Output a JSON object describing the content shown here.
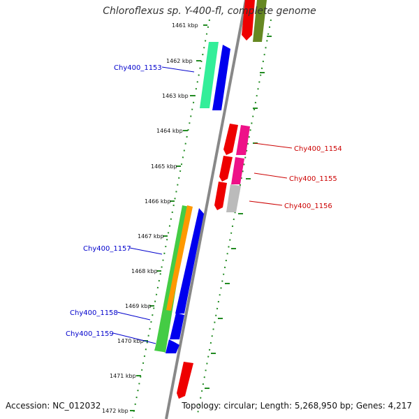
{
  "title": "Chloroflexus sp. Y-400-fl, complete genome",
  "footer": {
    "accession": "Accession: NC_012032",
    "summary": "Topology: circular; Length: 5,268,950 bp; Genes: 4,217"
  },
  "scale": {
    "ticks": [
      {
        "label": "1461 kbp"
      },
      {
        "label": "1462 kbp"
      },
      {
        "label": "1463 kbp"
      },
      {
        "label": "1464 kbp"
      },
      {
        "label": "1465 kbp"
      },
      {
        "label": "1466 kbp"
      },
      {
        "label": "1467 kbp"
      },
      {
        "label": "1468 kbp"
      },
      {
        "label": "1469 kbp"
      },
      {
        "label": "1470 kbp"
      },
      {
        "label": "1471 kbp"
      },
      {
        "label": "1472 kbp"
      }
    ]
  },
  "gene_labels": {
    "left": [
      "Chy400_1153",
      "Chy400_1157",
      "Chy400_1158",
      "Chy400_1159"
    ],
    "right": [
      "Chy400_1154",
      "Chy400_1155",
      "Chy400_1156"
    ]
  },
  "colors": {
    "left_label": "#0000cc",
    "right_label": "#cc0000",
    "backbone": "#888888",
    "tick_green": "#228b22",
    "cds_red": "#ee0000",
    "cds_blue": "#0000ee",
    "cds_teal": "#33ee99",
    "cds_green": "#44cc44",
    "cds_orange": "#ff9900",
    "cds_magenta": "#ee1188",
    "cds_grey": "#bbbbbb",
    "cds_olive": "#668822"
  }
}
